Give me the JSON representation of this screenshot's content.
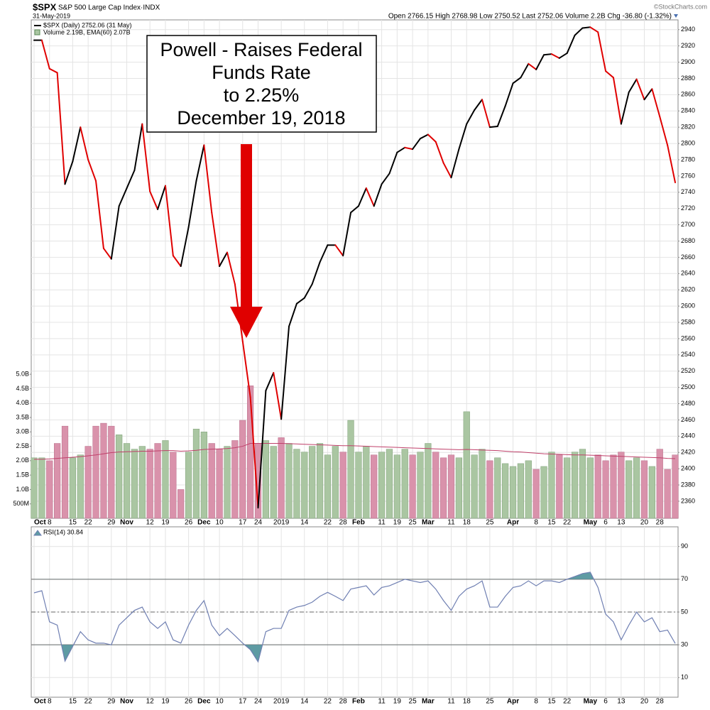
{
  "header": {
    "symbol": "$SPX",
    "name": "S&P 500 Large Cap Index·INDX",
    "date": "31-May-2019",
    "quote": "Open 2766.15  High 2768.98  Low 2750.52  Last 2752.06  Volume 2.2B  Chg -36.80 (-1.32%)",
    "watermark": "©StockCharts.com"
  },
  "chart_data": [
    {
      "type": "line",
      "legend": "$SPX (Daily) 2752.06 (31 May)",
      "annotation": [
        "Powell - Raises Federal",
        "Funds Rate",
        "to 2.25%",
        "December 19, 2018"
      ],
      "categories": [
        "Oct",
        null,
        "8",
        null,
        null,
        "15",
        null,
        "22",
        null,
        null,
        "29",
        null,
        "Nov",
        null,
        null,
        "12",
        null,
        "19",
        null,
        null,
        "26",
        null,
        "Dec",
        null,
        "10",
        null,
        null,
        "17",
        null,
        "24",
        null,
        null,
        "2019",
        null,
        null,
        "14",
        null,
        null,
        "22",
        null,
        "28",
        null,
        "Feb",
        null,
        null,
        "11",
        null,
        "19",
        null,
        "25",
        null,
        "Mar",
        null,
        null,
        "11",
        null,
        "18",
        null,
        null,
        "25",
        null,
        null,
        "Apr",
        null,
        null,
        "8",
        null,
        "15",
        null,
        "22",
        null,
        null,
        "May",
        null,
        "6",
        null,
        "13",
        null,
        null,
        "20",
        null,
        "28",
        null,
        null
      ],
      "values": [
        2927,
        2927,
        2892,
        2887,
        2750,
        2778,
        2820,
        2780,
        2754,
        2671,
        2658,
        2723,
        2745,
        2767,
        2824,
        2741,
        2719,
        2748,
        2662,
        2649,
        2697,
        2754,
        2798,
        2715,
        2649,
        2666,
        2627,
        2557,
        2488,
        2352,
        2496,
        2518,
        2461,
        2575,
        2603,
        2610,
        2627,
        2654,
        2675,
        2675,
        2662,
        2715,
        2723,
        2745,
        2723,
        2750,
        2763,
        2789,
        2795,
        2793,
        2806,
        2811,
        2802,
        2776,
        2758,
        2793,
        2824,
        2841,
        2854,
        2820,
        2821,
        2846,
        2874,
        2881,
        2898,
        2891,
        2909,
        2910,
        2905,
        2911,
        2933,
        2942,
        2943,
        2937,
        2889,
        2881,
        2824,
        2863,
        2879,
        2854,
        2867,
        2833,
        2798,
        2752
      ],
      "up_color": "#000000",
      "down_color": "#e00000",
      "ylim": [
        2339,
        2952
      ],
      "yticks": [
        2360,
        2380,
        2400,
        2420,
        2440,
        2460,
        2480,
        2500,
        2520,
        2540,
        2560,
        2580,
        2600,
        2620,
        2640,
        2660,
        2680,
        2700,
        2720,
        2740,
        2760,
        2780,
        2800,
        2820,
        2840,
        2860,
        2880,
        2900,
        2920,
        2940
      ],
      "axis_side": "right",
      "grid": true
    },
    {
      "type": "bar",
      "legend": "Volume 2.19B, EMA(60) 2.07B",
      "values": [
        2.1,
        2.1,
        2.0,
        2.6,
        3.2,
        2.1,
        2.2,
        2.5,
        3.2,
        3.3,
        3.2,
        2.9,
        2.6,
        2.4,
        2.5,
        2.4,
        2.6,
        2.7,
        2.3,
        1.0,
        2.3,
        3.1,
        3.0,
        2.6,
        2.4,
        2.5,
        2.7,
        3.4,
        4.6,
        2.6,
        2.7,
        2.5,
        2.8,
        2.6,
        2.4,
        2.3,
        2.5,
        2.6,
        2.2,
        2.5,
        2.3,
        3.4,
        2.3,
        2.5,
        2.2,
        2.3,
        2.4,
        2.2,
        2.4,
        2.2,
        2.3,
        2.6,
        2.3,
        2.1,
        2.2,
        2.1,
        3.7,
        2.2,
        2.4,
        2.0,
        2.1,
        1.9,
        1.8,
        1.9,
        2.0,
        1.7,
        1.8,
        2.3,
        2.2,
        2.1,
        2.3,
        2.4,
        2.1,
        2.2,
        2.0,
        2.2,
        2.3,
        2.0,
        2.1,
        2.0,
        1.8,
        2.4,
        1.7,
        2.2
      ],
      "ema": [
        2.05,
        2.05,
        2.06,
        2.08,
        2.1,
        2.12,
        2.14,
        2.17,
        2.2,
        2.24,
        2.28,
        2.3,
        2.31,
        2.32,
        2.33,
        2.33,
        2.34,
        2.35,
        2.35,
        2.33,
        2.34,
        2.36,
        2.39,
        2.4,
        2.41,
        2.42,
        2.45,
        2.5,
        2.6,
        2.6,
        2.6,
        2.6,
        2.6,
        2.59,
        2.58,
        2.57,
        2.56,
        2.55,
        2.54,
        2.53,
        2.52,
        2.52,
        2.51,
        2.5,
        2.49,
        2.48,
        2.47,
        2.46,
        2.45,
        2.44,
        2.43,
        2.42,
        2.41,
        2.4,
        2.39,
        2.38,
        2.39,
        2.38,
        2.37,
        2.36,
        2.35,
        2.33,
        2.31,
        2.3,
        2.28,
        2.26,
        2.24,
        2.23,
        2.22,
        2.21,
        2.2,
        2.2,
        2.19,
        2.18,
        2.17,
        2.16,
        2.15,
        2.14,
        2.13,
        2.12,
        2.11,
        2.1,
        2.08,
        2.07
      ],
      "up_color": "#aac6a2",
      "down_color": "#d992ab",
      "ema_color": "#c0406a",
      "ylim": [
        0,
        17.3
      ],
      "yticks": [
        {
          "value": 0.5,
          "label": "500M"
        },
        {
          "value": 1,
          "label": "1.0B"
        },
        {
          "value": 1.5,
          "label": "1.5B"
        },
        {
          "value": 2,
          "label": "2.0B"
        },
        {
          "value": 2.5,
          "label": "2.5B"
        },
        {
          "value": 3,
          "label": "3.0B"
        },
        {
          "value": 3.5,
          "label": "3.5B"
        },
        {
          "value": 4,
          "label": "4.0B"
        },
        {
          "value": 4.5,
          "label": "4.5B"
        },
        {
          "value": 5,
          "label": "5.0B"
        }
      ],
      "axis_side": "left",
      "grid": false
    },
    {
      "type": "line",
      "legend": "RSI(14) 30.84",
      "categories": [
        "Oct",
        null,
        "8",
        null,
        null,
        "15",
        null,
        "22",
        null,
        null,
        "29",
        null,
        "Nov",
        null,
        null,
        "12",
        null,
        "19",
        null,
        null,
        "26",
        null,
        "Dec",
        null,
        "10",
        null,
        null,
        "17",
        null,
        "24",
        null,
        null,
        "2019",
        null,
        null,
        "14",
        null,
        null,
        "22",
        null,
        "28",
        null,
        "Feb",
        null,
        null,
        "11",
        null,
        "19",
        null,
        "25",
        null,
        "Mar",
        null,
        null,
        "11",
        null,
        "18",
        null,
        null,
        "25",
        null,
        null,
        "Apr",
        null,
        null,
        "8",
        null,
        "15",
        null,
        "22",
        null,
        null,
        "May",
        null,
        "6",
        null,
        "13",
        null,
        null,
        "20",
        null,
        "28",
        null,
        null
      ],
      "values": [
        61.7,
        63,
        44,
        42,
        20,
        29,
        38,
        33,
        31,
        31,
        30,
        42,
        46.5,
        51,
        53,
        44,
        40,
        44,
        33,
        31,
        42,
        51,
        57,
        42,
        35.6,
        40,
        35.6,
        31,
        27,
        19.6,
        38,
        40,
        40,
        51,
        53,
        54,
        56,
        59.6,
        62,
        59.6,
        57,
        64,
        65,
        66,
        60.4,
        65,
        66,
        68,
        70,
        69,
        68,
        69,
        64,
        57,
        51,
        59.6,
        64,
        66,
        69,
        53,
        53,
        59.6,
        65,
        66,
        69,
        66,
        69,
        69,
        68,
        70,
        71.7,
        73.5,
        74.3,
        65,
        48.7,
        44,
        33,
        42,
        50,
        44,
        46.5,
        38,
        39,
        30.84
      ],
      "color": "#6f7fb2",
      "fill_color": "#5e9ba3",
      "overbought": 70,
      "oversold": 30,
      "centerline": 50,
      "ylim": [
        -2,
        102
      ],
      "yticks": [
        10,
        30,
        50,
        70,
        90
      ],
      "axis_side": "right",
      "grid": true
    }
  ]
}
